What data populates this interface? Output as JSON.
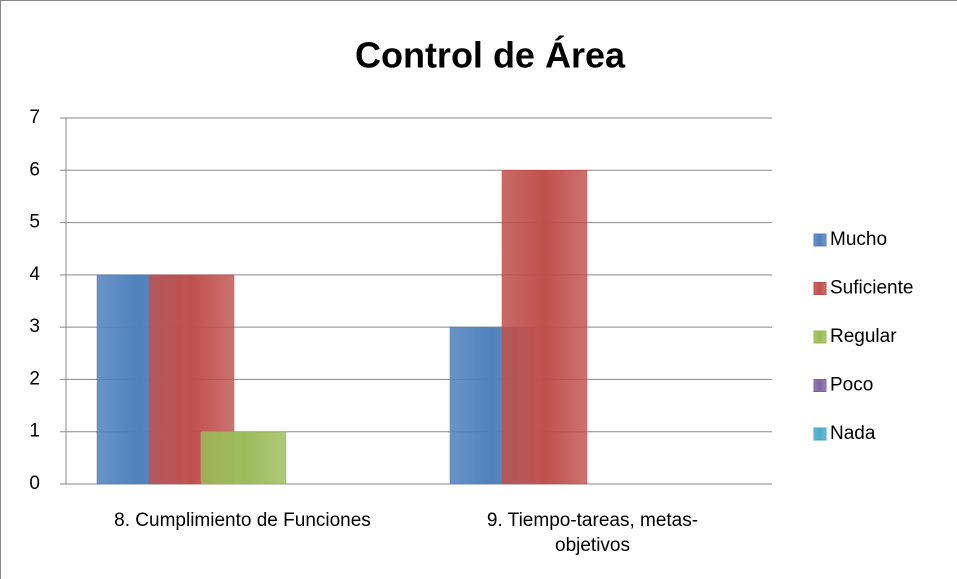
{
  "chart_data": {
    "type": "bar",
    "title": "Control de Área",
    "categories": [
      "8. Cumplimiento de Funciones",
      "9. Tiempo-tareas, metas-objetivos"
    ],
    "series": [
      {
        "name": "Mucho",
        "color": "#4f81bd",
        "values": [
          4,
          3
        ]
      },
      {
        "name": "Suficiente",
        "color": "#c0504d",
        "values": [
          4,
          6
        ]
      },
      {
        "name": "Regular",
        "color": "#9bbb59",
        "values": [
          1,
          0
        ]
      },
      {
        "name": "Poco",
        "color": "#8064a2",
        "values": [
          0,
          0
        ]
      },
      {
        "name": "Nada",
        "color": "#4bacc6",
        "values": [
          0,
          0
        ]
      }
    ],
    "ylim": [
      0,
      7
    ],
    "yticks": [
      0,
      1,
      2,
      3,
      4,
      5,
      6,
      7
    ],
    "grid": true,
    "legend": "right"
  }
}
